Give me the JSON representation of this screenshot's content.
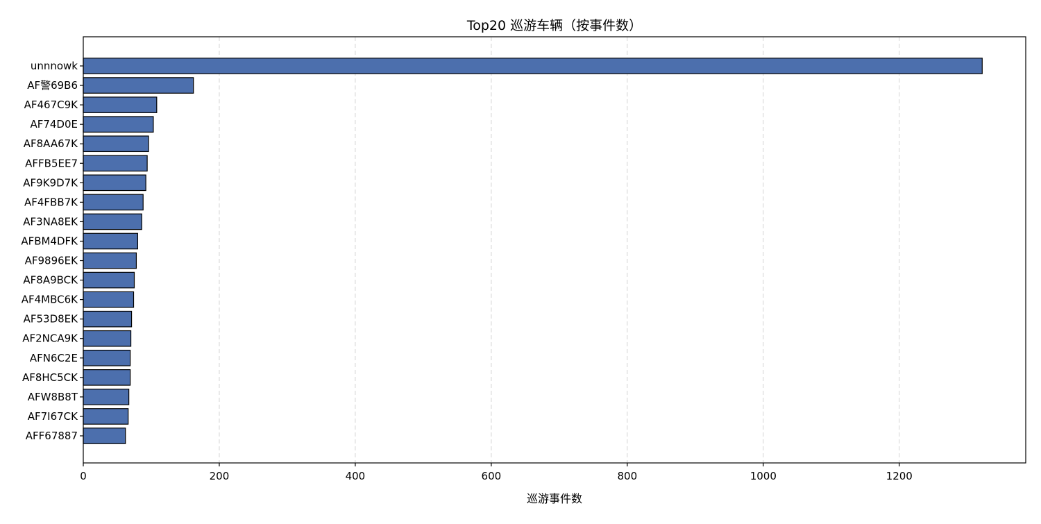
{
  "chart_data": {
    "type": "bar",
    "orientation": "horizontal",
    "title": "Top20 巡游车辆（按事件数）",
    "xlabel": "巡游事件数",
    "ylabel": "",
    "xlim": [
      0,
      1386
    ],
    "xticks": [
      0,
      200,
      400,
      600,
      800,
      1000,
      1200
    ],
    "grid": "x, dashed",
    "categories": [
      "unnnowk",
      "AF警69B6",
      "AF467C9K",
      "AF74D0E",
      "AF8AA67K",
      "AFFB5EE7",
      "AF9K9D7K",
      "AF4FBB7K",
      "AF3NA8EK",
      "AFBM4DFK",
      "AF9896EK",
      "AF8A9BCK",
      "AF4MBC6K",
      "AF53D8EK",
      "AF2NCA9K",
      "AFN6C2E",
      "AF8HC5CK",
      "AFW8B8T",
      "AF7I67CK",
      "AFF67887"
    ],
    "values": [
      1322,
      162,
      108,
      103,
      96,
      94,
      92,
      88,
      86,
      80,
      78,
      75,
      74,
      71,
      70,
      69,
      69,
      67,
      66,
      62
    ],
    "bar_color": "#4c6fad",
    "edge_color": "#000000"
  }
}
